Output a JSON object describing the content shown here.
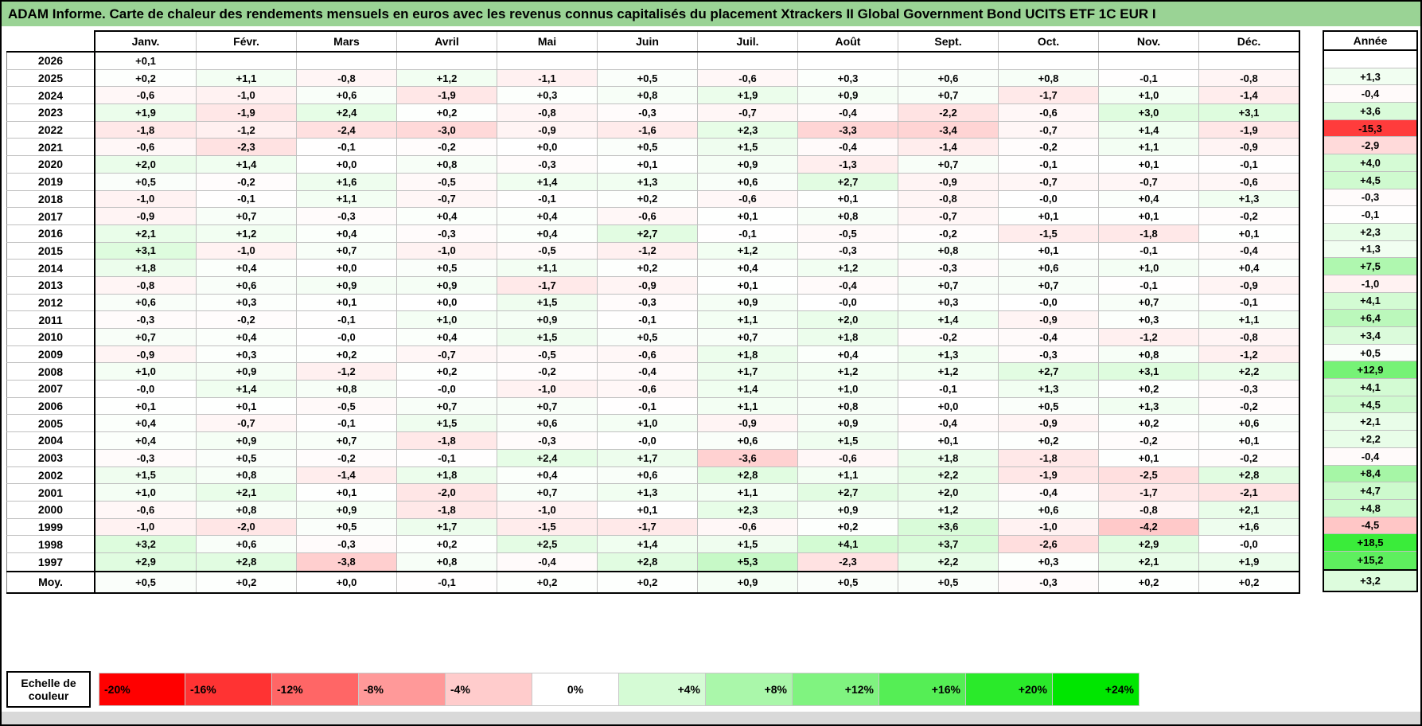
{
  "title": "ADAM Informe. Carte de chaleur des rendements mensuels en euros avec les revenus connus capitalisés du placement Xtrackers II Global Government Bond UCITS ETF 1C EUR I",
  "colors": {
    "title_bg": "#9AD395",
    "grid_line": "#C0C0C0",
    "negative_end": "#FF0000",
    "positive_end": "#00E600",
    "footer_strip": "#D9D9D9",
    "worst_year_cell": "#FF3C3C",
    "best_year_cell": "#3BE63B"
  },
  "table": {
    "months": [
      "Janv.",
      "Févr.",
      "Mars",
      "Avril",
      "Mai",
      "Juin",
      "Juil.",
      "Août",
      "Sept.",
      "Oct.",
      "Nov.",
      "Déc."
    ],
    "annual_header": "Année",
    "average_label": "Moy.",
    "rows": [
      {
        "year": "2026",
        "values": [
          "+0,1",
          "",
          "",
          "",
          "",
          "",
          "",
          "",
          "",
          "",
          "",
          ""
        ],
        "annual": ""
      },
      {
        "year": "2025",
        "values": [
          "+0,2",
          "+1,1",
          "-0,8",
          "+1,2",
          "-1,1",
          "+0,5",
          "-0,6",
          "+0,3",
          "+0,6",
          "+0,8",
          "-0,1",
          "-0,8"
        ],
        "annual": "+1,3"
      },
      {
        "year": "2024",
        "values": [
          "-0,6",
          "-1,0",
          "+0,6",
          "-1,9",
          "+0,3",
          "+0,8",
          "+1,9",
          "+0,9",
          "+0,7",
          "-1,7",
          "+1,0",
          "-1,4"
        ],
        "annual": "-0,4"
      },
      {
        "year": "2023",
        "values": [
          "+1,9",
          "-1,9",
          "+2,4",
          "+0,2",
          "-0,8",
          "-0,3",
          "-0,7",
          "-0,4",
          "-2,2",
          "-0,6",
          "+3,0",
          "+3,1"
        ],
        "annual": "+3,6"
      },
      {
        "year": "2022",
        "values": [
          "-1,8",
          "-1,2",
          "-2,4",
          "-3,0",
          "-0,9",
          "-1,6",
          "+2,3",
          "-3,3",
          "-3,4",
          "-0,7",
          "+1,4",
          "-1,9"
        ],
        "annual": "-15,3"
      },
      {
        "year": "2021",
        "values": [
          "-0,6",
          "-2,3",
          "-0,1",
          "-0,2",
          "+0,0",
          "+0,5",
          "+1,5",
          "-0,4",
          "-1,4",
          "-0,2",
          "+1,1",
          "-0,9"
        ],
        "annual": "-2,9"
      },
      {
        "year": "2020",
        "values": [
          "+2,0",
          "+1,4",
          "+0,0",
          "+0,8",
          "-0,3",
          "+0,1",
          "+0,9",
          "-1,3",
          "+0,7",
          "-0,1",
          "+0,1",
          "-0,1"
        ],
        "annual": "+4,0"
      },
      {
        "year": "2019",
        "values": [
          "+0,5",
          "-0,2",
          "+1,6",
          "-0,5",
          "+1,4",
          "+1,3",
          "+0,6",
          "+2,7",
          "-0,9",
          "-0,7",
          "-0,7",
          "-0,6"
        ],
        "annual": "+4,5"
      },
      {
        "year": "2018",
        "values": [
          "-1,0",
          "-0,1",
          "+1,1",
          "-0,7",
          "-0,1",
          "+0,2",
          "-0,6",
          "+0,1",
          "-0,8",
          "-0,0",
          "+0,4",
          "+1,3"
        ],
        "annual": "-0,3"
      },
      {
        "year": "2017",
        "values": [
          "-0,9",
          "+0,7",
          "-0,3",
          "+0,4",
          "+0,4",
          "-0,6",
          "+0,1",
          "+0,8",
          "-0,7",
          "+0,1",
          "+0,1",
          "-0,2"
        ],
        "annual": "-0,1"
      },
      {
        "year": "2016",
        "values": [
          "+2,1",
          "+1,2",
          "+0,4",
          "-0,3",
          "+0,4",
          "+2,7",
          "-0,1",
          "-0,5",
          "-0,2",
          "-1,5",
          "-1,8",
          "+0,1"
        ],
        "annual": "+2,3"
      },
      {
        "year": "2015",
        "values": [
          "+3,1",
          "-1,0",
          "+0,7",
          "-1,0",
          "-0,5",
          "-1,2",
          "+1,2",
          "-0,3",
          "+0,8",
          "+0,1",
          "-0,1",
          "-0,4"
        ],
        "annual": "+1,3"
      },
      {
        "year": "2014",
        "values": [
          "+1,8",
          "+0,4",
          "+0,0",
          "+0,5",
          "+1,1",
          "+0,2",
          "+0,4",
          "+1,2",
          "-0,3",
          "+0,6",
          "+1,0",
          "+0,4"
        ],
        "annual": "+7,5"
      },
      {
        "year": "2013",
        "values": [
          "-0,8",
          "+0,6",
          "+0,9",
          "+0,9",
          "-1,7",
          "-0,9",
          "+0,1",
          "-0,4",
          "+0,7",
          "+0,7",
          "-0,1",
          "-0,9"
        ],
        "annual": "-1,0"
      },
      {
        "year": "2012",
        "values": [
          "+0,6",
          "+0,3",
          "+0,1",
          "+0,0",
          "+1,5",
          "-0,3",
          "+0,9",
          "-0,0",
          "+0,3",
          "-0,0",
          "+0,7",
          "-0,1"
        ],
        "annual": "+4,1"
      },
      {
        "year": "2011",
        "values": [
          "-0,3",
          "-0,2",
          "-0,1",
          "+1,0",
          "+0,9",
          "-0,1",
          "+1,1",
          "+2,0",
          "+1,4",
          "-0,9",
          "+0,3",
          "+1,1"
        ],
        "annual": "+6,4"
      },
      {
        "year": "2010",
        "values": [
          "+0,7",
          "+0,4",
          "-0,0",
          "+0,4",
          "+1,5",
          "+0,5",
          "+0,7",
          "+1,8",
          "-0,2",
          "-0,4",
          "-1,2",
          "-0,8"
        ],
        "annual": "+3,4"
      },
      {
        "year": "2009",
        "values": [
          "-0,9",
          "+0,3",
          "+0,2",
          "-0,7",
          "-0,5",
          "-0,6",
          "+1,8",
          "+0,4",
          "+1,3",
          "-0,3",
          "+0,8",
          "-1,2"
        ],
        "annual": "+0,5"
      },
      {
        "year": "2008",
        "values": [
          "+1,0",
          "+0,9",
          "-1,2",
          "+0,2",
          "-0,2",
          "-0,4",
          "+1,7",
          "+1,2",
          "+1,2",
          "+2,7",
          "+3,1",
          "+2,2"
        ],
        "annual": "+12,9"
      },
      {
        "year": "2007",
        "values": [
          "-0,0",
          "+1,4",
          "+0,8",
          "-0,0",
          "-1,0",
          "-0,6",
          "+1,4",
          "+1,0",
          "-0,1",
          "+1,3",
          "+0,2",
          "-0,3"
        ],
        "annual": "+4,1"
      },
      {
        "year": "2006",
        "values": [
          "+0,1",
          "+0,1",
          "-0,5",
          "+0,7",
          "+0,7",
          "-0,1",
          "+1,1",
          "+0,8",
          "+0,0",
          "+0,5",
          "+1,3",
          "-0,2"
        ],
        "annual": "+4,5"
      },
      {
        "year": "2005",
        "values": [
          "+0,4",
          "-0,7",
          "-0,1",
          "+1,5",
          "+0,6",
          "+1,0",
          "-0,9",
          "+0,9",
          "-0,4",
          "-0,9",
          "+0,2",
          "+0,6"
        ],
        "annual": "+2,1"
      },
      {
        "year": "2004",
        "values": [
          "+0,4",
          "+0,9",
          "+0,7",
          "-1,8",
          "-0,3",
          "-0,0",
          "+0,6",
          "+1,5",
          "+0,1",
          "+0,2",
          "-0,2",
          "+0,1"
        ],
        "annual": "+2,2"
      },
      {
        "year": "2003",
        "values": [
          "-0,3",
          "+0,5",
          "-0,2",
          "-0,1",
          "+2,4",
          "+1,7",
          "-3,6",
          "-0,6",
          "+1,8",
          "-1,8",
          "+0,1",
          "-0,2"
        ],
        "annual": "-0,4"
      },
      {
        "year": "2002",
        "values": [
          "+1,5",
          "+0,8",
          "-1,4",
          "+1,8",
          "+0,4",
          "+0,6",
          "+2,8",
          "+1,1",
          "+2,2",
          "-1,9",
          "-2,5",
          "+2,8"
        ],
        "annual": "+8,4"
      },
      {
        "year": "2001",
        "values": [
          "+1,0",
          "+2,1",
          "+0,1",
          "-2,0",
          "+0,7",
          "+1,3",
          "+1,1",
          "+2,7",
          "+2,0",
          "-0,4",
          "-1,7",
          "-2,1"
        ],
        "annual": "+4,7"
      },
      {
        "year": "2000",
        "values": [
          "-0,6",
          "+0,8",
          "+0,9",
          "-1,8",
          "-1,0",
          "+0,1",
          "+2,3",
          "+0,9",
          "+1,2",
          "+0,6",
          "-0,8",
          "+2,1"
        ],
        "annual": "+4,8"
      },
      {
        "year": "1999",
        "values": [
          "-1,0",
          "-2,0",
          "+0,5",
          "+1,7",
          "-1,5",
          "-1,7",
          "-0,6",
          "+0,2",
          "+3,6",
          "-1,0",
          "-4,2",
          "+1,6"
        ],
        "annual": "-4,5"
      },
      {
        "year": "1998",
        "values": [
          "+3,2",
          "+0,6",
          "-0,3",
          "+0,2",
          "+2,5",
          "+1,4",
          "+1,5",
          "+4,1",
          "+3,7",
          "-2,6",
          "+2,9",
          "-0,0"
        ],
        "annual": "+18,5"
      },
      {
        "year": "1997",
        "values": [
          "+2,9",
          "+2,8",
          "-3,8",
          "+0,8",
          "-0,4",
          "+2,8",
          "+5,3",
          "-2,3",
          "+2,2",
          "+0,3",
          "+2,1",
          "+1,9"
        ],
        "annual": "+15,2"
      }
    ],
    "average": {
      "values": [
        "+0,5",
        "+0,2",
        "+0,0",
        "-0,1",
        "+0,2",
        "+0,2",
        "+0,9",
        "+0,5",
        "+0,5",
        "-0,3",
        "+0,2",
        "+0,2"
      ],
      "annual": "+3,2"
    }
  },
  "scale": {
    "label": "Echelle de couleur",
    "stops": [
      "-20%",
      "-16%",
      "-12%",
      "-8%",
      "-4%",
      "0%",
      "+4%",
      "+8%",
      "+12%",
      "+16%",
      "+20%",
      "+24%"
    ],
    "stop_values": [
      -20,
      -16,
      -12,
      -8,
      -4,
      0,
      4,
      8,
      12,
      16,
      20,
      24
    ]
  },
  "chart_data": {
    "type": "heatmap",
    "title": "ADAM Informe. Carte de chaleur des rendements mensuels en euros avec les revenus connus capitalisés du placement Xtrackers II Global Government Bond UCITS ETF 1C EUR I",
    "x": [
      "Janv.",
      "Févr.",
      "Mars",
      "Avril",
      "Mai",
      "Juin",
      "Juil.",
      "Août",
      "Sept.",
      "Oct.",
      "Nov.",
      "Déc."
    ],
    "y": [
      "2026",
      "2025",
      "2024",
      "2023",
      "2022",
      "2021",
      "2020",
      "2019",
      "2018",
      "2017",
      "2016",
      "2015",
      "2014",
      "2013",
      "2012",
      "2011",
      "2010",
      "2009",
      "2008",
      "2007",
      "2006",
      "2005",
      "2004",
      "2003",
      "2002",
      "2001",
      "2000",
      "1999",
      "1998",
      "1997"
    ],
    "values": [
      [
        0.1,
        null,
        null,
        null,
        null,
        null,
        null,
        null,
        null,
        null,
        null,
        null
      ],
      [
        0.2,
        1.1,
        -0.8,
        1.2,
        -1.1,
        0.5,
        -0.6,
        0.3,
        0.6,
        0.8,
        -0.1,
        -0.8
      ],
      [
        -0.6,
        -1.0,
        0.6,
        -1.9,
        0.3,
        0.8,
        1.9,
        0.9,
        0.7,
        -1.7,
        1.0,
        -1.4
      ],
      [
        1.9,
        -1.9,
        2.4,
        0.2,
        -0.8,
        -0.3,
        -0.7,
        -0.4,
        -2.2,
        -0.6,
        3.0,
        3.1
      ],
      [
        -1.8,
        -1.2,
        -2.4,
        -3.0,
        -0.9,
        -1.6,
        2.3,
        -3.3,
        -3.4,
        -0.7,
        1.4,
        -1.9
      ],
      [
        -0.6,
        -2.3,
        -0.1,
        -0.2,
        0.0,
        0.5,
        1.5,
        -0.4,
        -1.4,
        -0.2,
        1.1,
        -0.9
      ],
      [
        2.0,
        1.4,
        0.0,
        0.8,
        -0.3,
        0.1,
        0.9,
        -1.3,
        0.7,
        -0.1,
        0.1,
        -0.1
      ],
      [
        0.5,
        -0.2,
        1.6,
        -0.5,
        1.4,
        1.3,
        0.6,
        2.7,
        -0.9,
        -0.7,
        -0.7,
        -0.6
      ],
      [
        -1.0,
        -0.1,
        1.1,
        -0.7,
        -0.1,
        0.2,
        -0.6,
        0.1,
        -0.8,
        -0.0,
        0.4,
        1.3
      ],
      [
        -0.9,
        0.7,
        -0.3,
        0.4,
        0.4,
        -0.6,
        0.1,
        0.8,
        -0.7,
        0.1,
        0.1,
        -0.2
      ],
      [
        2.1,
        1.2,
        0.4,
        -0.3,
        0.4,
        2.7,
        -0.1,
        -0.5,
        -0.2,
        -1.5,
        -1.8,
        0.1
      ],
      [
        3.1,
        -1.0,
        0.7,
        -1.0,
        -0.5,
        -1.2,
        1.2,
        -0.3,
        0.8,
        0.1,
        -0.1,
        -0.4
      ],
      [
        1.8,
        0.4,
        0.0,
        0.5,
        1.1,
        0.2,
        0.4,
        1.2,
        -0.3,
        0.6,
        1.0,
        0.4
      ],
      [
        -0.8,
        0.6,
        0.9,
        0.9,
        -1.7,
        -0.9,
        0.1,
        -0.4,
        0.7,
        0.7,
        -0.1,
        -0.9
      ],
      [
        0.6,
        0.3,
        0.1,
        0.0,
        1.5,
        -0.3,
        0.9,
        -0.0,
        0.3,
        -0.0,
        0.7,
        -0.1
      ],
      [
        -0.3,
        -0.2,
        -0.1,
        1.0,
        0.9,
        -0.1,
        1.1,
        2.0,
        1.4,
        -0.9,
        0.3,
        1.1
      ],
      [
        0.7,
        0.4,
        -0.0,
        0.4,
        1.5,
        0.5,
        0.7,
        1.8,
        -0.2,
        -0.4,
        -1.2,
        -0.8
      ],
      [
        -0.9,
        0.3,
        0.2,
        -0.7,
        -0.5,
        -0.6,
        1.8,
        0.4,
        1.3,
        -0.3,
        0.8,
        -1.2
      ],
      [
        1.0,
        0.9,
        -1.2,
        0.2,
        -0.2,
        -0.4,
        1.7,
        1.2,
        1.2,
        2.7,
        3.1,
        2.2
      ],
      [
        -0.0,
        1.4,
        0.8,
        -0.0,
        -1.0,
        -0.6,
        1.4,
        1.0,
        -0.1,
        1.3,
        0.2,
        -0.3
      ],
      [
        0.1,
        0.1,
        -0.5,
        0.7,
        0.7,
        -0.1,
        1.1,
        0.8,
        0.0,
        0.5,
        1.3,
        -0.2
      ],
      [
        0.4,
        -0.7,
        -0.1,
        1.5,
        0.6,
        1.0,
        -0.9,
        0.9,
        -0.4,
        -0.9,
        0.2,
        0.6
      ],
      [
        0.4,
        0.9,
        0.7,
        -1.8,
        -0.3,
        -0.0,
        0.6,
        1.5,
        0.1,
        0.2,
        -0.2,
        0.1
      ],
      [
        -0.3,
        0.5,
        -0.2,
        -0.1,
        2.4,
        1.7,
        -3.6,
        -0.6,
        1.8,
        -1.8,
        0.1,
        -0.2
      ],
      [
        1.5,
        0.8,
        -1.4,
        1.8,
        0.4,
        0.6,
        2.8,
        1.1,
        2.2,
        -1.9,
        -2.5,
        2.8
      ],
      [
        1.0,
        2.1,
        0.1,
        -2.0,
        0.7,
        1.3,
        1.1,
        2.7,
        2.0,
        -0.4,
        -1.7,
        -2.1
      ],
      [
        -0.6,
        0.8,
        0.9,
        -1.8,
        -1.0,
        0.1,
        2.3,
        0.9,
        1.2,
        0.6,
        -0.8,
        2.1
      ],
      [
        -1.0,
        -2.0,
        0.5,
        1.7,
        -1.5,
        -1.7,
        -0.6,
        0.2,
        3.6,
        -1.0,
        -4.2,
        1.6
      ],
      [
        3.2,
        0.6,
        -0.3,
        0.2,
        2.5,
        1.4,
        1.5,
        4.1,
        3.7,
        -2.6,
        2.9,
        -0.0
      ],
      [
        2.9,
        2.8,
        -3.8,
        0.8,
        -0.4,
        2.8,
        5.3,
        -2.3,
        2.2,
        0.3,
        2.1,
        1.9
      ]
    ],
    "annual_values": [
      null,
      1.3,
      -0.4,
      3.6,
      -15.3,
      -2.9,
      4.0,
      4.5,
      -0.3,
      -0.1,
      2.3,
      1.3,
      7.5,
      -1.0,
      4.1,
      6.4,
      3.4,
      0.5,
      12.9,
      4.1,
      4.5,
      2.1,
      2.2,
      -0.4,
      8.4,
      4.7,
      4.8,
      -4.5,
      18.5,
      15.2
    ],
    "average_values": [
      0.5,
      0.2,
      0.0,
      -0.1,
      0.2,
      0.2,
      0.9,
      0.5,
      0.5,
      -0.3,
      0.2,
      0.2
    ],
    "average_annual": 3.2,
    "colorscale": {
      "stops_percent": [
        -20,
        -16,
        -12,
        -8,
        -4,
        0,
        4,
        8,
        12,
        16,
        20,
        24
      ],
      "negative_color": "#FF0000",
      "zero_color": "#FFFFFF",
      "positive_color": "#00E600"
    },
    "legend_position": "bottom",
    "grid": true
  }
}
